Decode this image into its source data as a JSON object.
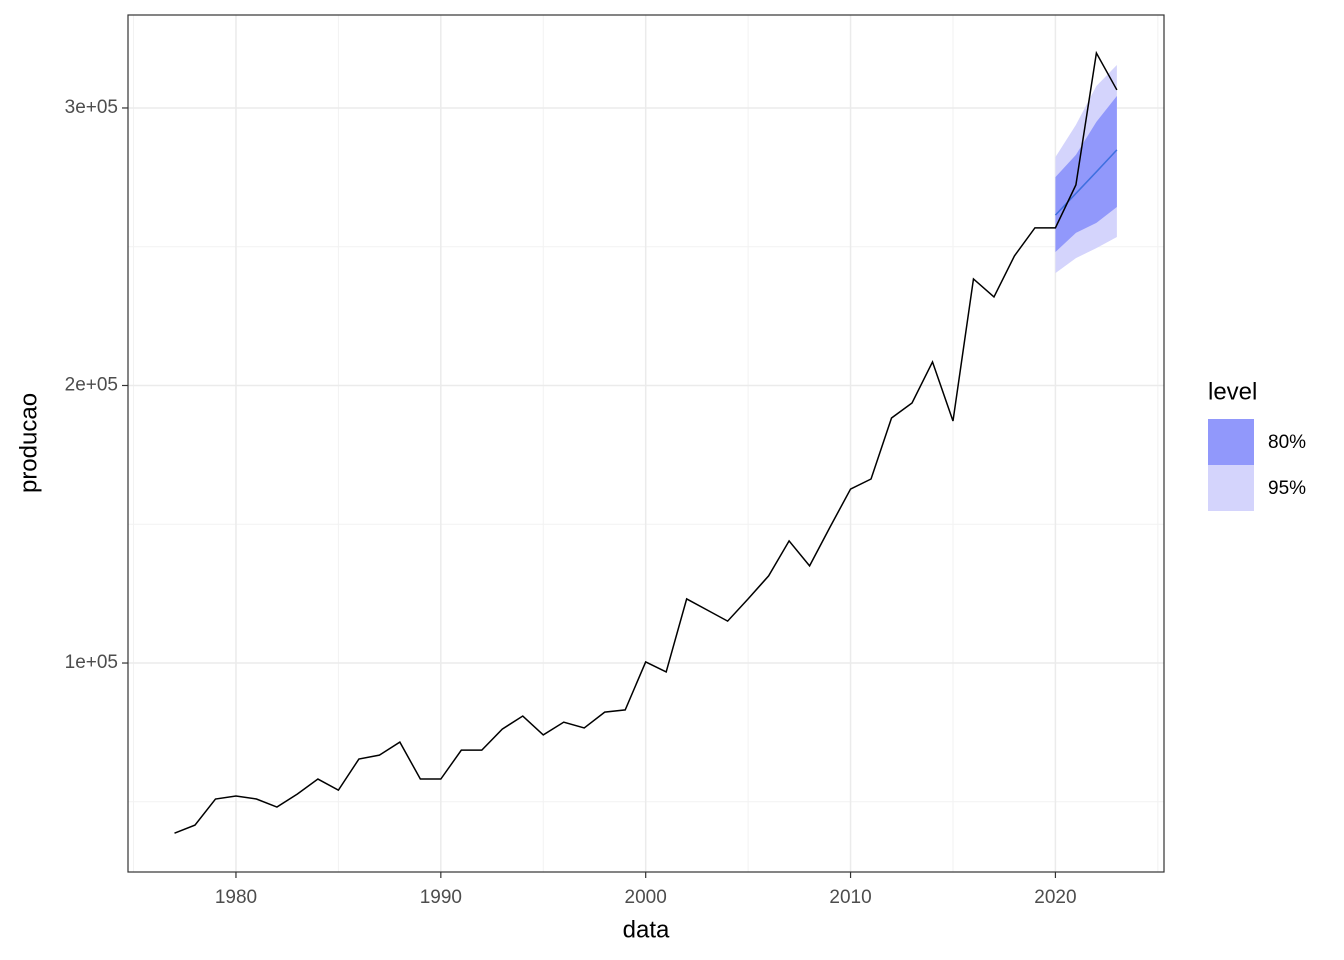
{
  "chart_data": {
    "type": "line",
    "x_label": "data",
    "y_label": "producao",
    "x": [
      1977,
      1978,
      1979,
      1980,
      1981,
      1982,
      1983,
      1984,
      1985,
      1986,
      1987,
      1988,
      1989,
      1990,
      1991,
      1992,
      1993,
      1994,
      1995,
      1996,
      1997,
      1998,
      1999,
      2000,
      2001,
      2002,
      2003,
      2004,
      2005,
      2006,
      2007,
      2008,
      2009,
      2010,
      2011,
      2012,
      2013,
      2014,
      2015,
      2016,
      2017,
      2018,
      2019,
      2020,
      2021,
      2022,
      2023
    ],
    "values": [
      38700,
      41600,
      51000,
      52100,
      51000,
      48100,
      52800,
      58200,
      54200,
      65400,
      66800,
      71500,
      58200,
      58200,
      68600,
      68600,
      76200,
      80900,
      74100,
      78700,
      76600,
      82300,
      83100,
      100400,
      96800,
      123100,
      119100,
      115100,
      123100,
      131400,
      144000,
      135000,
      149000,
      162700,
      166300,
      188300,
      193700,
      208500,
      187200,
      238400,
      231900,
      246700,
      256800,
      256800,
      272300,
      319800,
      306500
    ],
    "color": "#000000",
    "forecast": {
      "x": [
        2020,
        2021,
        2022,
        2023
      ],
      "mean": [
        261400,
        269200,
        277000,
        284900
      ],
      "color": "#3f6fe0",
      "legend_title": "level",
      "intervals": [
        {
          "name": "80%",
          "color": "#9198fb",
          "lower": [
            248100,
            255000,
            258600,
            264300
          ],
          "upper": [
            275100,
            283100,
            295000,
            304300
          ]
        },
        {
          "name": "95%",
          "color": "#d4d4fc",
          "lower": [
            240500,
            245900,
            249500,
            253500
          ],
          "upper": [
            282300,
            293900,
            307900,
            315500
          ]
        }
      ]
    },
    "xlim": [
      1974.73,
      2025.3
    ],
    "ylim": [
      24700,
      333500
    ],
    "xticks": [
      1980,
      1990,
      2000,
      2010,
      2020
    ],
    "xminorticks": [
      1975,
      1985,
      1995,
      2005,
      2015,
      2025
    ],
    "yticks": [
      {
        "value": 100000,
        "label": "1e+05"
      },
      {
        "value": 200000,
        "label": "2e+05"
      },
      {
        "value": 300000,
        "label": "3e+05"
      }
    ],
    "yminorticks": [
      50000,
      150000,
      250000
    ],
    "grid": true
  }
}
